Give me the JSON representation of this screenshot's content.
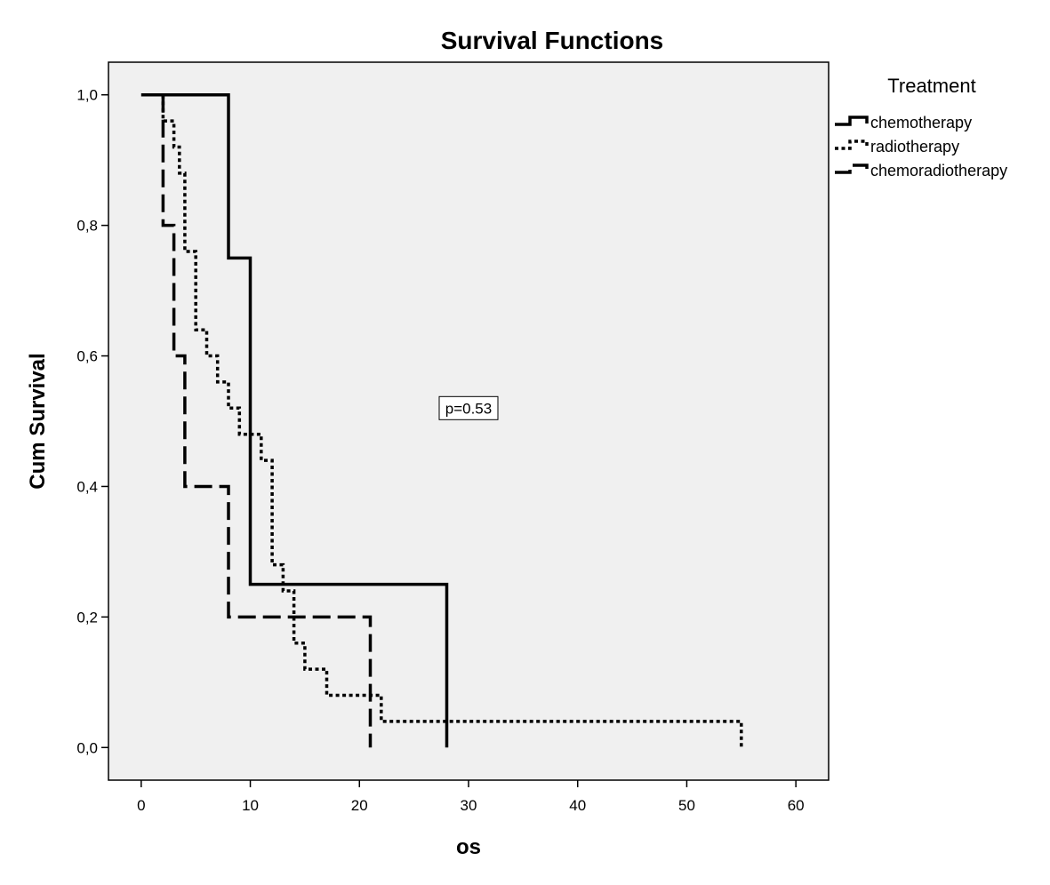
{
  "chart_data": {
    "type": "line",
    "subtype": "kaplan-meier-step",
    "title": "Survival Functions",
    "xlabel": "os",
    "ylabel": "Cum Survival",
    "xlim": [
      -3,
      63
    ],
    "ylim": [
      -0.05,
      1.05
    ],
    "x_ticks": [
      0,
      10,
      20,
      30,
      40,
      50,
      60
    ],
    "x_tick_labels": [
      "0",
      "10",
      "20",
      "30",
      "40",
      "50",
      "60"
    ],
    "y_ticks": [
      0,
      0.2,
      0.4,
      0.6,
      0.8,
      1.0
    ],
    "y_tick_labels": [
      "0,0",
      "0,2",
      "0,4",
      "0,6",
      "0,8",
      "1,0"
    ],
    "grid": false,
    "plot_background": "#f0f0f0",
    "legend": {
      "title": "Treatment",
      "placement": "right-outside-top"
    },
    "annotation": "p=0.53",
    "annotation_pos": {
      "x": 30,
      "y": 0.52
    },
    "series": [
      {
        "name": "chemotherapy",
        "style": "solid",
        "points": [
          [
            0,
            1.0
          ],
          [
            8,
            1.0
          ],
          [
            8,
            0.75
          ],
          [
            10,
            0.75
          ],
          [
            10,
            0.25
          ],
          [
            28,
            0.25
          ],
          [
            28,
            0.0
          ]
        ]
      },
      {
        "name": "radiotherapy",
        "style": "dotted",
        "points": [
          [
            2,
            1.0
          ],
          [
            2,
            0.96
          ],
          [
            3,
            0.96
          ],
          [
            3,
            0.92
          ],
          [
            3.5,
            0.92
          ],
          [
            3.5,
            0.88
          ],
          [
            4,
            0.88
          ],
          [
            4,
            0.84
          ],
          [
            4,
            0.76
          ],
          [
            5,
            0.76
          ],
          [
            5,
            0.64
          ],
          [
            6,
            0.64
          ],
          [
            6,
            0.6
          ],
          [
            7,
            0.6
          ],
          [
            7,
            0.56
          ],
          [
            8,
            0.56
          ],
          [
            8,
            0.52
          ],
          [
            9,
            0.52
          ],
          [
            9,
            0.48
          ],
          [
            11,
            0.48
          ],
          [
            11,
            0.44
          ],
          [
            12,
            0.44
          ],
          [
            12,
            0.28
          ],
          [
            13,
            0.28
          ],
          [
            13,
            0.24
          ],
          [
            14,
            0.24
          ],
          [
            14,
            0.16
          ],
          [
            15,
            0.16
          ],
          [
            15,
            0.12
          ],
          [
            17,
            0.12
          ],
          [
            17,
            0.08
          ],
          [
            22,
            0.08
          ],
          [
            22,
            0.04
          ],
          [
            55,
            0.04
          ],
          [
            55,
            0.0
          ]
        ]
      },
      {
        "name": "chemoradiotherapy",
        "style": "dashed",
        "points": [
          [
            2,
            1.0
          ],
          [
            2,
            0.8
          ],
          [
            3,
            0.8
          ],
          [
            3,
            0.6
          ],
          [
            4,
            0.6
          ],
          [
            4,
            0.4
          ],
          [
            8,
            0.4
          ],
          [
            8,
            0.2
          ],
          [
            21,
            0.2
          ],
          [
            21,
            0.0
          ]
        ]
      }
    ]
  }
}
